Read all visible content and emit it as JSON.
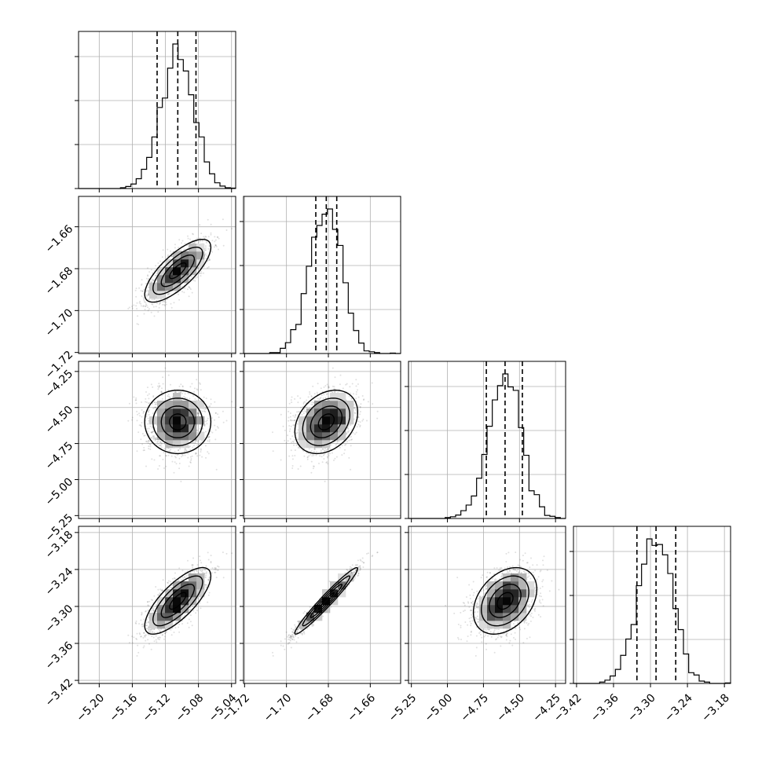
{
  "chart_data": {
    "type": "corner",
    "parameters": 4,
    "panels": [
      {
        "row": 0,
        "col": 0,
        "type": "histogram",
        "x_param": 0,
        "quantiles": [
          -5.13,
          -5.105,
          -5.083
        ]
      },
      {
        "row": 1,
        "col": 0,
        "type": "2d-density",
        "x_param": 0,
        "y_param": 1
      },
      {
        "row": 1,
        "col": 1,
        "type": "histogram",
        "x_param": 1,
        "quantiles": [
          -1.686,
          -1.681,
          -1.676
        ]
      },
      {
        "row": 2,
        "col": 0,
        "type": "2d-density",
        "x_param": 0,
        "y_param": 2
      },
      {
        "row": 2,
        "col": 1,
        "type": "2d-density",
        "x_param": 1,
        "y_param": 2
      },
      {
        "row": 2,
        "col": 2,
        "type": "histogram",
        "x_param": 2,
        "quantiles": [
          -4.73,
          -4.6,
          -4.48
        ]
      },
      {
        "row": 3,
        "col": 0,
        "type": "2d-density",
        "x_param": 0,
        "y_param": 3
      },
      {
        "row": 3,
        "col": 1,
        "type": "2d-density",
        "x_param": 1,
        "y_param": 3
      },
      {
        "row": 3,
        "col": 2,
        "type": "2d-density",
        "x_param": 2,
        "y_param": 3
      },
      {
        "row": 3,
        "col": 3,
        "type": "histogram",
        "x_param": 3,
        "quantiles": [
          -3.322,
          -3.291,
          -3.259
        ]
      }
    ],
    "axes": [
      {
        "index": 0,
        "range": [
          -5.225,
          -5.035
        ],
        "ticks": [
          -5.2,
          -5.16,
          -5.12,
          -5.08,
          -5.04
        ],
        "tick_labels": [
          "−5.20",
          "−5.16",
          "−5.12",
          "−5.08",
          "−5.04"
        ]
      },
      {
        "index": 1,
        "range": [
          -1.7205,
          -1.6455
        ],
        "ticks": [
          -1.72,
          -1.7,
          -1.68,
          -1.66
        ],
        "tick_labels": [
          "−1.72",
          "−1.70",
          "−1.68",
          "−1.66"
        ]
      },
      {
        "index": 2,
        "range": [
          -5.27,
          -4.18
        ],
        "ticks": [
          -5.25,
          -5.0,
          -4.75,
          -4.5,
          -4.25
        ],
        "tick_labels": [
          "−5.25",
          "−5.00",
          "−4.75",
          "−4.50",
          "−4.25"
        ]
      },
      {
        "index": 3,
        "range": [
          -3.425,
          -3.17
        ],
        "ticks": [
          -3.42,
          -3.36,
          -3.3,
          -3.24,
          -3.18
        ],
        "tick_labels": [
          "−3.42",
          "−3.36",
          "−3.30",
          "−3.24",
          "−3.18"
        ]
      }
    ],
    "posterior": {
      "means": [
        -5.105,
        -1.681,
        -4.6,
        -3.291
      ],
      "std": [
        0.02,
        0.0075,
        0.11,
        0.027
      ],
      "correlation": [
        [
          1.0,
          0.75,
          0.0,
          0.75
        ],
        [
          0.75,
          1.0,
          0.3,
          0.97
        ],
        [
          0.0,
          0.3,
          1.0,
          0.35
        ],
        [
          0.75,
          0.97,
          0.35,
          1.0
        ]
      ]
    },
    "grid": true,
    "title": "",
    "xlabel": "",
    "ylabel": ""
  }
}
